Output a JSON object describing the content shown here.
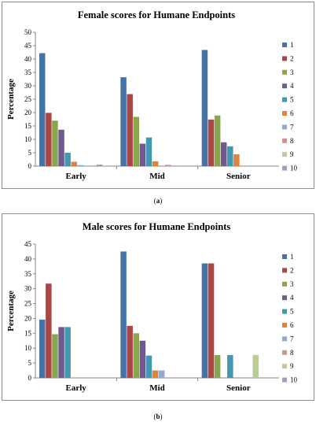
{
  "series_names": [
    "1",
    "2",
    "3",
    "4",
    "5",
    "6",
    "7",
    "8",
    "9",
    "10"
  ],
  "colors": [
    "#4573a7",
    "#aa4643",
    "#89a54e",
    "#71588f",
    "#4198af",
    "#db843d",
    "#93a9cf",
    "#d19392",
    "#b9cd96",
    "#a99bbd"
  ],
  "captions": [
    {
      "open": "(",
      "letter": "a",
      "close": ")"
    },
    {
      "open": "(",
      "letter": "b",
      "close": ")"
    }
  ],
  "chart_data": [
    {
      "type": "bar",
      "title": "Female scores for Humane Endpoints",
      "ylabel": "Percentage",
      "xlabel": "",
      "categories": [
        "Early",
        "Mid",
        "Senior"
      ],
      "ylim": [
        0,
        50
      ],
      "yticks": [
        0,
        5,
        10,
        15,
        20,
        25,
        30,
        35,
        40,
        45,
        50
      ],
      "grid": false,
      "legend": "right",
      "series": [
        {
          "name": "1",
          "values": [
            42.2,
            33.2,
            43.4
          ]
        },
        {
          "name": "2",
          "values": [
            19.9,
            26.9,
            17.4
          ]
        },
        {
          "name": "3",
          "values": [
            17.0,
            18.4,
            18.9
          ]
        },
        {
          "name": "4",
          "values": [
            13.6,
            8.4,
            8.9
          ]
        },
        {
          "name": "5",
          "values": [
            5.0,
            10.7,
            7.4
          ]
        },
        {
          "name": "6",
          "values": [
            1.6,
            1.8,
            4.4
          ]
        },
        {
          "name": "7",
          "values": [
            0.4,
            0,
            0
          ]
        },
        {
          "name": "8",
          "values": [
            0,
            0.5,
            0
          ]
        },
        {
          "name": "9",
          "values": [
            0,
            0,
            0
          ]
        },
        {
          "name": "10",
          "values": [
            0.6,
            0,
            0
          ]
        }
      ]
    },
    {
      "type": "bar",
      "title": "Male scores for Humane Endpoints",
      "ylabel": "Percentage",
      "xlabel": "",
      "categories": [
        "Early",
        "Mid",
        "Senior"
      ],
      "ylim": [
        0,
        45
      ],
      "yticks": [
        0,
        5,
        10,
        15,
        20,
        25,
        30,
        35,
        40,
        45
      ],
      "grid": false,
      "legend": "right",
      "series": [
        {
          "name": "1",
          "values": [
            19.6,
            42.5,
            38.5
          ]
        },
        {
          "name": "2",
          "values": [
            31.7,
            17.5,
            38.5
          ]
        },
        {
          "name": "3",
          "values": [
            14.7,
            15.0,
            7.7
          ]
        },
        {
          "name": "4",
          "values": [
            17.1,
            12.5,
            0
          ]
        },
        {
          "name": "5",
          "values": [
            17.1,
            7.5,
            7.7
          ]
        },
        {
          "name": "6",
          "values": [
            0,
            2.5,
            0
          ]
        },
        {
          "name": "7",
          "values": [
            0,
            2.5,
            0
          ]
        },
        {
          "name": "8",
          "values": [
            0,
            0,
            0
          ]
        },
        {
          "name": "9",
          "values": [
            0,
            0,
            7.7
          ]
        },
        {
          "name": "10",
          "values": [
            0,
            0,
            0
          ]
        }
      ]
    }
  ]
}
